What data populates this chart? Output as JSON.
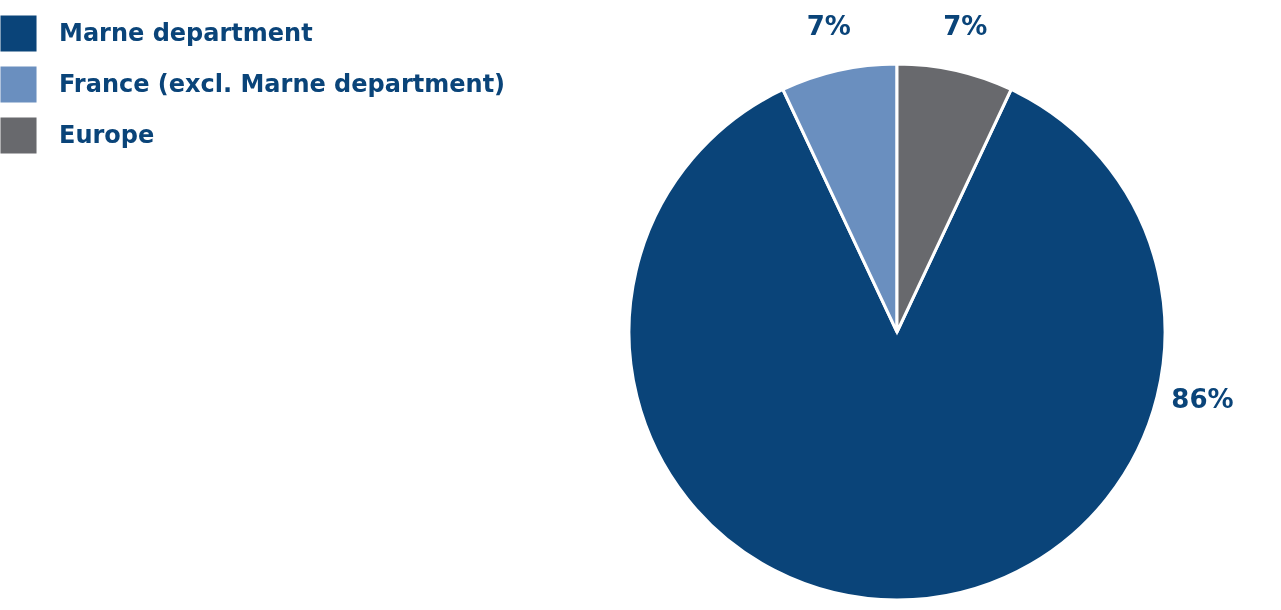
{
  "chart_data": {
    "type": "pie",
    "categories": [
      "Marne department",
      "France (excl. Marne department)",
      "Europe"
    ],
    "values": [
      86,
      7,
      7
    ],
    "colors": [
      "#0a4479",
      "#6a8fbf",
      "#68696d"
    ],
    "value_labels": [
      "86%",
      "7%",
      "7%"
    ],
    "legend": "top left"
  }
}
